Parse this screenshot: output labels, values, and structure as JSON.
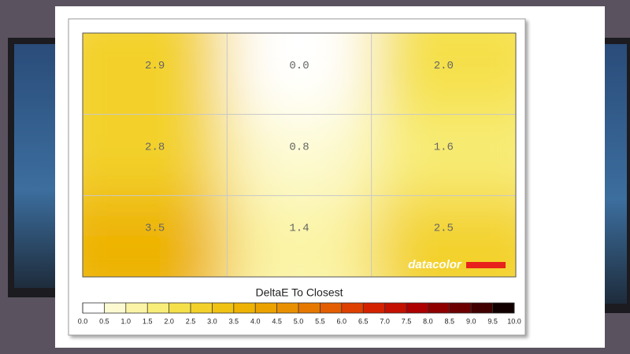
{
  "chart_data": {
    "type": "heatmap",
    "title": "DeltaE To Closest",
    "brand": "datacolor",
    "values": [
      [
        2.9,
        0.0,
        2.0
      ],
      [
        2.8,
        0.8,
        1.6
      ],
      [
        3.5,
        1.4,
        2.5
      ]
    ],
    "value_labels": [
      [
        "2.9",
        "0.0",
        "2.0"
      ],
      [
        "2.8",
        "0.8",
        "1.6"
      ],
      [
        "3.5",
        "1.4",
        "2.5"
      ]
    ],
    "grid": true,
    "colorbar_ticks": [
      {
        "value": 0,
        "label": "0.0"
      },
      0.5,
      {
        "value": 1,
        "label": "1.0"
      },
      1.5,
      {
        "value": 2,
        "label": "2.0"
      },
      2.5,
      {
        "value": 3,
        "label": "3.0"
      },
      3.5,
      {
        "value": 4,
        "label": "4.0"
      },
      4.5,
      {
        "value": 5,
        "label": "5.0"
      },
      5.5,
      {
        "value": 6,
        "label": "6.0"
      },
      6.5,
      {
        "value": 7,
        "label": "7.0"
      },
      7.5,
      {
        "value": 8,
        "label": "8.0"
      },
      8.5,
      {
        "value": 9,
        "label": "9.0"
      },
      9.5,
      {
        "value": 10,
        "label": "10.0"
      }
    ],
    "colors": [
      "#ffffff",
      "#fdfad2",
      "#fbf4a6",
      "#f8ed78",
      "#f5e04a",
      "#f3d12a",
      "#f0c214",
      "#edb204",
      "#eba200",
      "#e99000",
      "#e67800",
      "#e35e00",
      "#dd4000",
      "#d42200",
      "#c41000",
      "#ad0000",
      "#8e0000",
      "#6c0000",
      "#400000",
      "#120000"
    ]
  }
}
